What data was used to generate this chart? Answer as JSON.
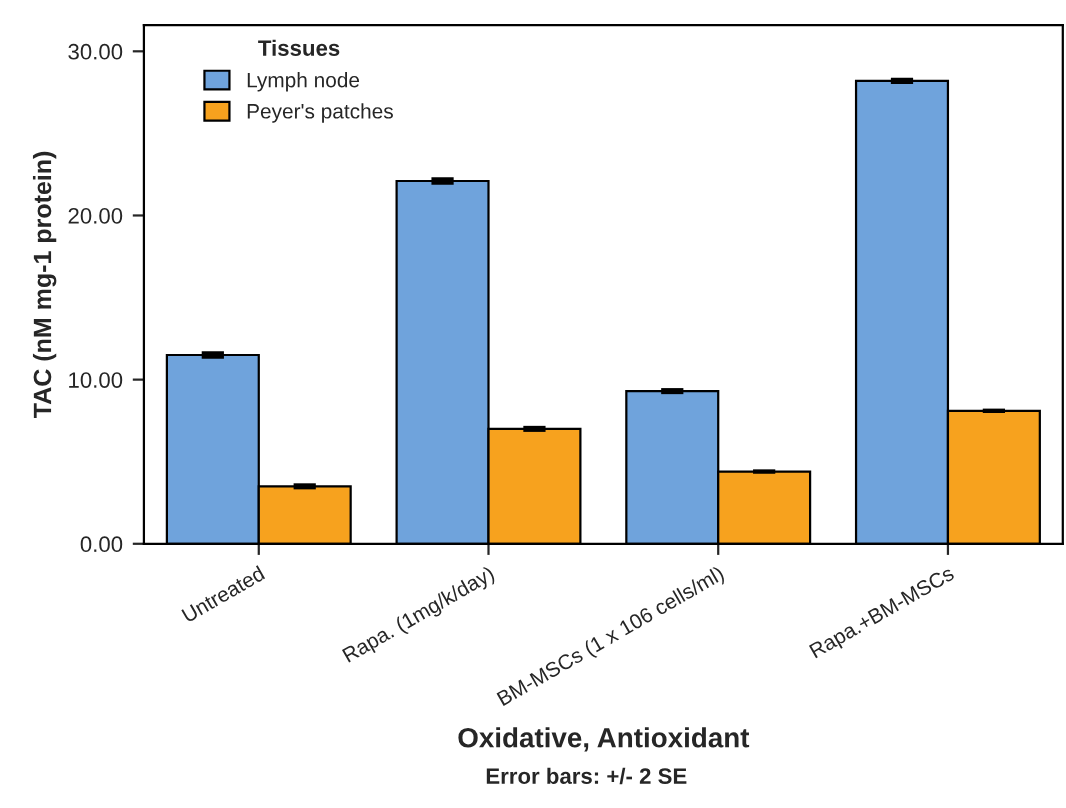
{
  "chart_data": {
    "type": "bar",
    "xlabel": "Oxidative, Antioxidant",
    "ylabel": "TAC (nM mg-1 protein)",
    "legend_title": "Tissues",
    "categories": [
      "Untreated",
      "Rapa. (1mg/k/day)",
      "BM-MSCs (1 x 106 cells/ml)",
      "Rapa.+BM-MSCs"
    ],
    "series": [
      {
        "name": "Lymph node",
        "color": "#6fa3dc",
        "values": [
          11.5,
          22.1,
          9.3,
          28.2
        ],
        "errors": [
          0.15,
          0.15,
          0.1,
          0.1
        ]
      },
      {
        "name": "Peyer's patches",
        "color": "#f7a21e",
        "values": [
          3.5,
          7.0,
          4.4,
          8.1
        ],
        "errors": [
          0.1,
          0.1,
          0.05,
          0.05
        ]
      }
    ],
    "ylim": [
      0,
      31.6
    ],
    "yticks": [
      {
        "value": 0,
        "label": "0.00"
      },
      {
        "value": 10,
        "label": "10.00"
      },
      {
        "value": 20,
        "label": "20.00"
      },
      {
        "value": 30,
        "label": "30.00"
      }
    ],
    "grid": false,
    "legend": "top left",
    "annotations": [
      "Error bars: +/- 2 SE"
    ]
  }
}
